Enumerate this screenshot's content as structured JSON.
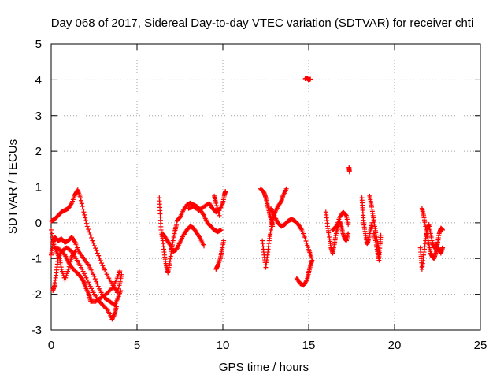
{
  "chart_data": {
    "type": "scatter",
    "title": "Day 068 of 2017, Sidereal Day-to-day VTEC variation (SDTVAR) for receiver chti",
    "xlabel": "GPS time / hours",
    "ylabel": "SDTVAR / TECUs",
    "xlim": [
      0,
      25
    ],
    "ylim": [
      -3,
      5
    ],
    "xticks": [
      0,
      5,
      10,
      15,
      20,
      25
    ],
    "yticks": [
      -3,
      -2,
      -1,
      0,
      1,
      2,
      3,
      4,
      5
    ],
    "grid": true,
    "marker": "+",
    "series": [
      {
        "name": "SDTVAR",
        "color": "#ff0000",
        "tracks": [
          [
            [
              0.0,
              0.05
            ],
            [
              0.2,
              0.1
            ],
            [
              0.4,
              0.2
            ],
            [
              0.6,
              0.3
            ],
            [
              0.8,
              0.35
            ],
            [
              1.0,
              0.4
            ],
            [
              1.2,
              0.55
            ],
            [
              1.4,
              0.8
            ],
            [
              1.55,
              0.92
            ],
            [
              1.7,
              0.7
            ],
            [
              1.9,
              0.3
            ],
            [
              2.1,
              -0.1
            ],
            [
              2.4,
              -0.5
            ],
            [
              2.7,
              -0.85
            ],
            [
              3.0,
              -1.2
            ],
            [
              3.3,
              -1.5
            ],
            [
              3.6,
              -1.75
            ],
            [
              3.85,
              -1.95
            ],
            [
              4.0,
              -1.7
            ],
            [
              4.1,
              -1.45
            ]
          ],
          [
            [
              0.0,
              -0.9
            ],
            [
              0.1,
              -0.6
            ],
            [
              0.2,
              -0.4
            ],
            [
              0.4,
              -0.5
            ],
            [
              0.6,
              -0.45
            ],
            [
              0.8,
              -0.55
            ],
            [
              1.0,
              -0.5
            ],
            [
              1.2,
              -0.4
            ],
            [
              1.4,
              -0.55
            ],
            [
              1.6,
              -0.8
            ],
            [
              1.9,
              -1.0
            ],
            [
              2.2,
              -1.2
            ],
            [
              2.5,
              -1.5
            ],
            [
              2.8,
              -1.85
            ],
            [
              3.1,
              -2.1
            ],
            [
              3.4,
              -2.2
            ],
            [
              3.7,
              -2.3
            ],
            [
              3.9,
              -2.1
            ],
            [
              4.05,
              -1.9
            ]
          ],
          [
            [
              0.1,
              -1.9
            ],
            [
              0.2,
              -1.75
            ],
            [
              0.3,
              -1.4
            ],
            [
              0.4,
              -1.0
            ],
            [
              0.6,
              -0.8
            ],
            [
              0.9,
              -0.7
            ],
            [
              1.2,
              -0.8
            ],
            [
              1.5,
              -1.05
            ],
            [
              1.8,
              -1.3
            ],
            [
              2.1,
              -1.6
            ],
            [
              2.4,
              -1.9
            ],
            [
              2.7,
              -2.15
            ],
            [
              3.0,
              -2.3
            ],
            [
              3.3,
              -2.45
            ],
            [
              3.55,
              -2.7
            ],
            [
              3.7,
              -2.55
            ],
            [
              3.8,
              -2.35
            ]
          ],
          [
            [
              0.0,
              -0.2
            ],
            [
              0.2,
              -0.7
            ],
            [
              0.5,
              -0.75
            ],
            [
              0.8,
              -0.9
            ],
            [
              1.0,
              -1.1
            ],
            [
              1.2,
              -1.25
            ],
            [
              1.5,
              -1.4
            ],
            [
              1.7,
              -1.5
            ],
            [
              1.9,
              -1.65
            ],
            [
              2.0,
              -1.8
            ],
            [
              2.2,
              -2.0
            ],
            [
              2.3,
              -2.2
            ],
            [
              2.6,
              -2.2
            ],
            [
              2.9,
              -2.1
            ],
            [
              3.2,
              -2.0
            ],
            [
              3.5,
              -1.85
            ],
            [
              3.8,
              -1.6
            ],
            [
              4.0,
              -1.35
            ]
          ],
          [
            [
              0.1,
              -0.55
            ],
            [
              0.3,
              -0.8
            ],
            [
              0.5,
              -1.0
            ],
            [
              0.6,
              -1.3
            ],
            [
              0.8,
              -1.6
            ],
            [
              1.0,
              -1.3
            ],
            [
              1.2,
              -0.95
            ],
            [
              1.4,
              -0.8
            ]
          ],
          [
            [
              6.3,
              0.7
            ],
            [
              6.35,
              0.25
            ],
            [
              6.4,
              -0.2
            ],
            [
              6.5,
              -0.5
            ],
            [
              6.6,
              -0.9
            ],
            [
              6.7,
              -1.2
            ],
            [
              6.8,
              -1.4
            ],
            [
              6.9,
              -1.15
            ],
            [
              7.0,
              -0.8
            ],
            [
              7.1,
              -0.5
            ],
            [
              7.2,
              -0.25
            ],
            [
              7.3,
              -0.05
            ]
          ],
          [
            [
              6.5,
              -0.3
            ],
            [
              6.7,
              -0.45
            ],
            [
              6.9,
              -0.6
            ],
            [
              7.1,
              -0.8
            ],
            [
              7.3,
              -0.75
            ],
            [
              7.5,
              -0.55
            ],
            [
              7.7,
              -0.35
            ],
            [
              7.9,
              -0.2
            ],
            [
              8.1,
              -0.1
            ],
            [
              8.3,
              -0.15
            ],
            [
              8.5,
              -0.3
            ],
            [
              8.7,
              -0.45
            ],
            [
              8.9,
              -0.65
            ]
          ],
          [
            [
              7.3,
              0.05
            ],
            [
              7.5,
              0.15
            ],
            [
              7.7,
              0.35
            ],
            [
              7.9,
              0.5
            ],
            [
              8.1,
              0.55
            ],
            [
              8.3,
              0.5
            ],
            [
              8.5,
              0.45
            ],
            [
              8.7,
              0.35
            ],
            [
              8.9,
              0.2
            ],
            [
              9.1,
              0.0
            ],
            [
              9.3,
              -0.1
            ],
            [
              9.5,
              -0.2
            ],
            [
              9.7,
              -0.25
            ],
            [
              9.9,
              -0.2
            ]
          ],
          [
            [
              8.0,
              0.4
            ],
            [
              8.3,
              0.45
            ],
            [
              8.6,
              0.35
            ],
            [
              8.9,
              0.45
            ],
            [
              9.2,
              0.55
            ],
            [
              9.4,
              0.4
            ],
            [
              9.6,
              0.3
            ],
            [
              9.8,
              0.35
            ],
            [
              10.0,
              0.55
            ],
            [
              10.1,
              0.8
            ],
            [
              10.15,
              0.88
            ]
          ],
          [
            [
              9.5,
              0.75
            ],
            [
              9.6,
              0.55
            ],
            [
              9.8,
              0.2
            ]
          ],
          [
            [
              9.6,
              -1.3
            ],
            [
              9.7,
              -1.2
            ],
            [
              9.85,
              -1.0
            ],
            [
              9.95,
              -0.75
            ],
            [
              10.05,
              -0.5
            ]
          ],
          [
            [
              12.2,
              0.95
            ],
            [
              12.4,
              0.85
            ],
            [
              12.5,
              0.7
            ],
            [
              12.6,
              0.5
            ],
            [
              12.7,
              0.3
            ],
            [
              12.8,
              0.1
            ],
            [
              12.9,
              -0.1
            ]
          ],
          [
            [
              12.3,
              -0.5
            ],
            [
              12.4,
              -0.9
            ],
            [
              12.5,
              -1.25
            ],
            [
              12.6,
              -0.9
            ],
            [
              12.7,
              -0.5
            ],
            [
              12.8,
              -0.2
            ],
            [
              12.9,
              0.05
            ],
            [
              13.0,
              0.25
            ],
            [
              13.2,
              0.45
            ],
            [
              13.4,
              0.6
            ],
            [
              13.5,
              0.75
            ],
            [
              13.7,
              0.95
            ]
          ],
          [
            [
              12.8,
              0.4
            ],
            [
              13.0,
              0.2
            ],
            [
              13.2,
              0.0
            ],
            [
              13.4,
              -0.1
            ],
            [
              13.6,
              -0.05
            ],
            [
              13.8,
              0.05
            ],
            [
              14.0,
              0.1
            ],
            [
              14.2,
              0.05
            ],
            [
              14.4,
              -0.05
            ],
            [
              14.6,
              -0.2
            ],
            [
              14.8,
              -0.45
            ],
            [
              15.0,
              -0.75
            ],
            [
              15.15,
              -0.95
            ]
          ],
          [
            [
              14.3,
              -1.55
            ],
            [
              14.5,
              -1.7
            ],
            [
              14.7,
              -1.75
            ],
            [
              14.9,
              -1.6
            ],
            [
              15.0,
              -1.4
            ],
            [
              15.1,
              -1.2
            ],
            [
              15.2,
              -1.05
            ]
          ],
          [
            [
              14.8,
              4.03
            ],
            [
              14.9,
              4.05
            ],
            [
              15.0,
              4.0
            ],
            [
              15.1,
              4.02
            ]
          ],
          [
            [
              17.35,
              1.55
            ],
            [
              17.38,
              1.42
            ]
          ],
          [
            [
              16.0,
              0.3
            ],
            [
              16.1,
              -0.1
            ],
            [
              16.2,
              -0.4
            ],
            [
              16.3,
              -0.7
            ],
            [
              16.4,
              -0.85
            ],
            [
              16.5,
              -0.6
            ],
            [
              16.6,
              -0.3
            ],
            [
              16.7,
              -0.1
            ],
            [
              16.8,
              0.05
            ],
            [
              16.9,
              -0.1
            ],
            [
              17.0,
              -0.3
            ],
            [
              17.1,
              -0.45
            ],
            [
              17.2,
              -0.5
            ],
            [
              17.3,
              -0.3
            ]
          ],
          [
            [
              16.4,
              -0.2
            ],
            [
              16.6,
              -0.1
            ],
            [
              16.8,
              0.15
            ],
            [
              17.0,
              0.3
            ],
            [
              17.2,
              0.2
            ],
            [
              17.3,
              -0.05
            ]
          ],
          [
            [
              18.1,
              0.7
            ],
            [
              18.15,
              0.35
            ],
            [
              18.2,
              0.0
            ],
            [
              18.3,
              -0.3
            ],
            [
              18.4,
              -0.6
            ],
            [
              18.5,
              -0.45
            ],
            [
              18.6,
              -0.2
            ],
            [
              18.7,
              0.0
            ]
          ],
          [
            [
              18.55,
              0.75
            ],
            [
              18.65,
              0.5
            ],
            [
              18.75,
              0.2
            ],
            [
              18.85,
              -0.1
            ],
            [
              18.95,
              -0.4
            ],
            [
              19.05,
              -0.7
            ],
            [
              19.1,
              -0.95
            ],
            [
              19.15,
              -0.65
            ],
            [
              19.2,
              -0.35
            ]
          ],
          [
            [
              18.8,
              -0.3
            ],
            [
              18.9,
              -0.5
            ],
            [
              19.0,
              -0.8
            ],
            [
              19.1,
              -1.05
            ]
          ],
          [
            [
              21.6,
              0.4
            ],
            [
              21.7,
              0.2
            ],
            [
              21.8,
              -0.1
            ],
            [
              21.9,
              -0.35
            ],
            [
              22.0,
              -0.6
            ],
            [
              22.1,
              -0.85
            ],
            [
              22.2,
              -0.95
            ],
            [
              22.3,
              -1.0
            ],
            [
              22.4,
              -0.85
            ],
            [
              22.5,
              -0.7
            ],
            [
              22.6,
              -0.75
            ],
            [
              22.7,
              -0.85
            ],
            [
              22.8,
              -0.7
            ]
          ],
          [
            [
              21.5,
              -0.7
            ],
            [
              21.55,
              -1.0
            ],
            [
              21.6,
              -1.3
            ],
            [
              21.7,
              -0.9
            ],
            [
              21.8,
              -0.5
            ],
            [
              21.9,
              -0.2
            ],
            [
              22.0,
              -0.05
            ],
            [
              22.1,
              -0.3
            ],
            [
              22.2,
              -0.55
            ],
            [
              22.3,
              -0.7
            ],
            [
              22.5,
              -0.6
            ],
            [
              22.6,
              -0.3
            ],
            [
              22.7,
              -0.15
            ],
            [
              22.8,
              -0.2
            ]
          ]
        ]
      }
    ]
  }
}
